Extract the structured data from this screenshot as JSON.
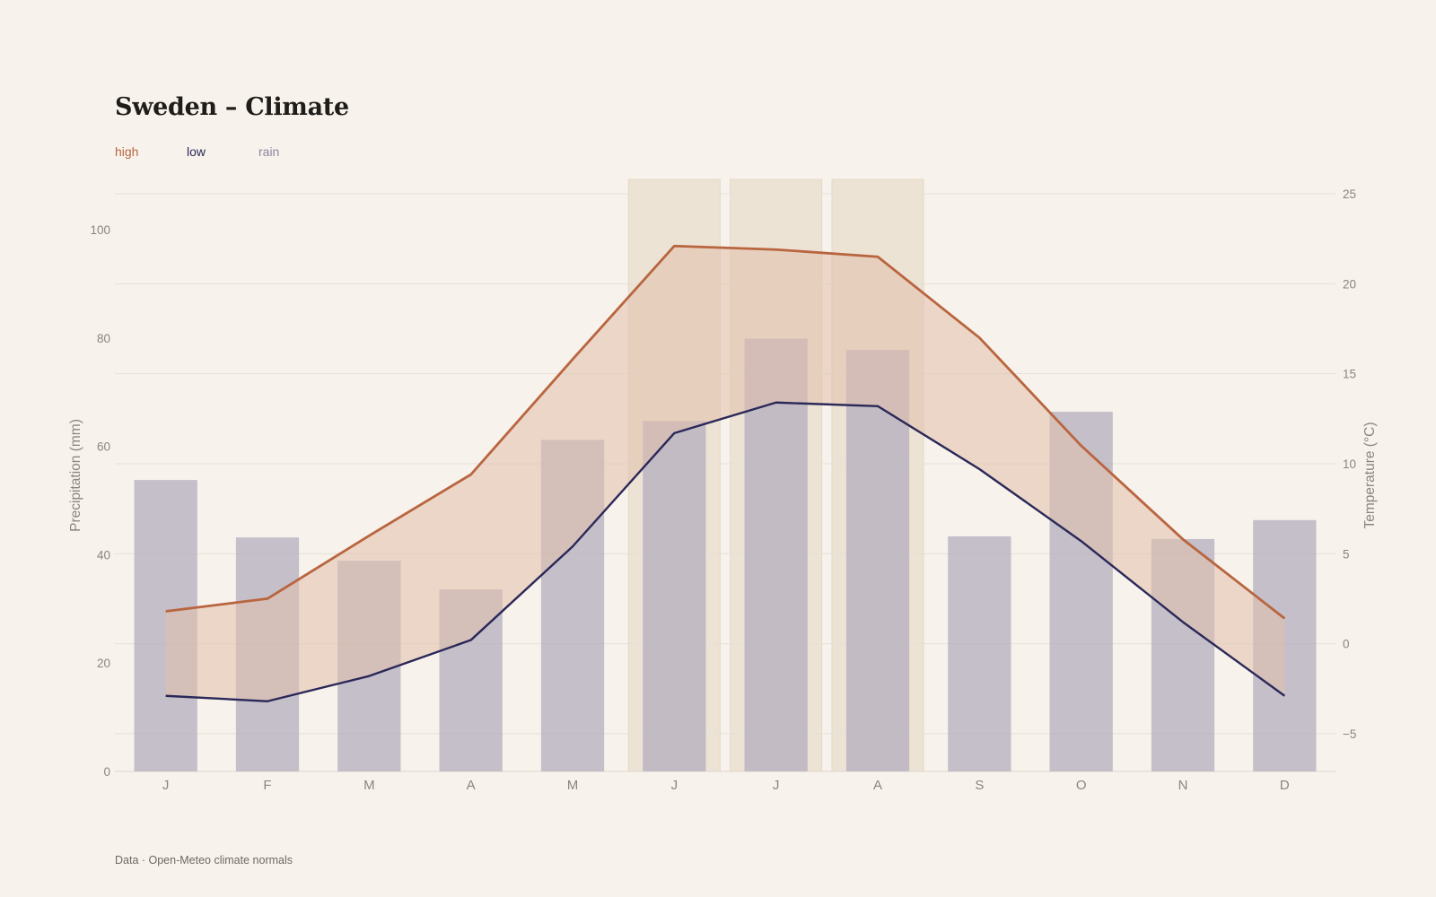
{
  "chart_data": {
    "type": "bar+line",
    "title": "Sweden – Climate",
    "source": "Data · Open-Meteo climate normals",
    "categories": [
      "J",
      "F",
      "M",
      "A",
      "M",
      "J",
      "J",
      "A",
      "S",
      "O",
      "N",
      "D"
    ],
    "legend": [
      {
        "key": "high",
        "label": "high",
        "color": "#b9653f"
      },
      {
        "key": "low",
        "label": "low",
        "color": "#2a2858"
      },
      {
        "key": "rain",
        "label": "rain",
        "color": "#8a86a0"
      }
    ],
    "series": [
      {
        "name": "rain",
        "type": "bar",
        "axis": "left",
        "values": [
          53.8,
          43.2,
          38.9,
          33.6,
          61.2,
          64.7,
          79.9,
          77.8,
          43.4,
          66.4,
          42.9,
          46.4
        ]
      },
      {
        "name": "high",
        "type": "line",
        "axis": "right",
        "values": [
          1.8,
          2.5,
          6.0,
          9.4,
          15.8,
          22.1,
          21.9,
          21.5,
          17.0,
          11.0,
          5.8,
          1.4
        ]
      },
      {
        "name": "low",
        "type": "line",
        "axis": "right",
        "values": [
          -2.9,
          -3.2,
          -1.8,
          0.2,
          5.4,
          11.7,
          13.4,
          13.2,
          9.7,
          5.7,
          1.2,
          -2.9
        ]
      }
    ],
    "highlight_months": [
      5,
      6,
      7
    ],
    "y_left": {
      "label": "Precipitation (mm)",
      "ticks": [
        0,
        20,
        40,
        60,
        80,
        100
      ],
      "range": [
        0,
        109.3
      ]
    },
    "y_right": {
      "label": "Temperature (°C)",
      "ticks": [
        -5,
        0,
        5,
        10,
        15,
        20,
        25
      ],
      "range": [
        -7.1,
        25.8
      ]
    },
    "grid": true
  },
  "colors": {
    "background": "#f7f2eb",
    "high": "#b9653f",
    "low": "#2a2858",
    "band_fill": "#e2bfac",
    "rain_bar": "#b3aebd",
    "highlight": "#ede3d5",
    "grid": "#e6e0d8"
  }
}
